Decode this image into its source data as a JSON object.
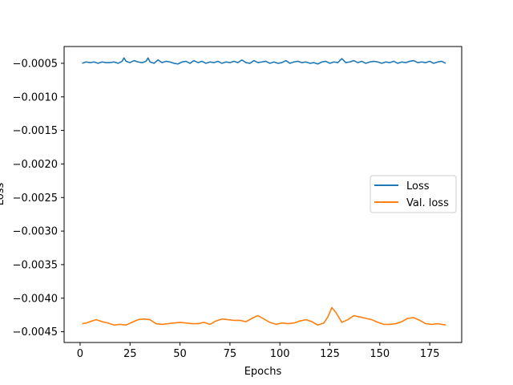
{
  "chart_data": {
    "type": "line",
    "title": "",
    "xlabel": "Epochs",
    "ylabel": "Loss",
    "xlim": [
      -8,
      191
    ],
    "ylim": [
      -0.00466,
      -0.00025
    ],
    "x_ticks": [
      0,
      25,
      50,
      75,
      100,
      125,
      150,
      175
    ],
    "x_tick_labels": [
      "0",
      "25",
      "50",
      "75",
      "100",
      "125",
      "150",
      "175"
    ],
    "y_ticks": [
      -0.0005,
      -0.001,
      -0.0015,
      -0.002,
      -0.0025,
      -0.003,
      -0.0035,
      -0.004,
      -0.0045
    ],
    "y_tick_labels": [
      "−0.0005",
      "−0.0010",
      "−0.0015",
      "−0.0020",
      "−0.0025",
      "−0.0030",
      "−0.0035",
      "−0.0040",
      "−0.0045"
    ],
    "grid": false,
    "legend_position": "center-right",
    "series": [
      {
        "name": "Loss",
        "color": "#1f77b4",
        "x": [
          1,
          3,
          5,
          7,
          9,
          11,
          13,
          15,
          17,
          19,
          21,
          22,
          23,
          25,
          27,
          29,
          31,
          33,
          34,
          35,
          37,
          39,
          41,
          43,
          45,
          47,
          49,
          51,
          53,
          55,
          57,
          59,
          61,
          63,
          65,
          67,
          69,
          71,
          73,
          75,
          77,
          79,
          81,
          83,
          85,
          87,
          89,
          91,
          93,
          95,
          97,
          99,
          101,
          103,
          105,
          107,
          109,
          111,
          113,
          115,
          117,
          119,
          121,
          123,
          125,
          127,
          129,
          131,
          133,
          135,
          137,
          139,
          141,
          143,
          145,
          147,
          149,
          151,
          153,
          155,
          157,
          159,
          161,
          163,
          165,
          167,
          169,
          171,
          173,
          175,
          177,
          179,
          181,
          183
        ],
        "y": [
          -0.0005,
          -0.00048,
          -0.00049,
          -0.00048,
          -0.0005,
          -0.00048,
          -0.00049,
          -0.00049,
          -0.00048,
          -0.0005,
          -0.00047,
          -0.00042,
          -0.00047,
          -0.00049,
          -0.00046,
          -0.00048,
          -0.00049,
          -0.00047,
          -0.00042,
          -0.00048,
          -0.0005,
          -0.00045,
          -0.00049,
          -0.00047,
          -0.00048,
          -0.0005,
          -0.00051,
          -0.00048,
          -0.00047,
          -0.0005,
          -0.00046,
          -0.00049,
          -0.00047,
          -0.0005,
          -0.00048,
          -0.00049,
          -0.00047,
          -0.0005,
          -0.00048,
          -0.00049,
          -0.00047,
          -0.00049,
          -0.00045,
          -0.00049,
          -0.0005,
          -0.00046,
          -0.00049,
          -0.00048,
          -0.00047,
          -0.0005,
          -0.00048,
          -0.0005,
          -0.00049,
          -0.00046,
          -0.0005,
          -0.00048,
          -0.00047,
          -0.00049,
          -0.00048,
          -0.0005,
          -0.00049,
          -0.00051,
          -0.00048,
          -0.00047,
          -0.0005,
          -0.00048,
          -0.00049,
          -0.00043,
          -0.00049,
          -0.00048,
          -0.00046,
          -0.00049,
          -0.00047,
          -0.0005,
          -0.00048,
          -0.00047,
          -0.00048,
          -0.0005,
          -0.00048,
          -0.00049,
          -0.00047,
          -0.0005,
          -0.00048,
          -0.00049,
          -0.00047,
          -0.00046,
          -0.00049,
          -0.00048,
          -0.00049,
          -0.00047,
          -0.0005,
          -0.00048,
          -0.00047,
          -0.0005
        ]
      },
      {
        "name": "Val. loss",
        "color": "#ff7f0e",
        "x": [
          1,
          3,
          5,
          8,
          11,
          14,
          17,
          20,
          23,
          26,
          29,
          32,
          35,
          38,
          41,
          44,
          47,
          50,
          53,
          56,
          59,
          62,
          65,
          68,
          71,
          74,
          77,
          80,
          83,
          86,
          89,
          92,
          95,
          98,
          101,
          104,
          107,
          110,
          113,
          116,
          119,
          122,
          124,
          126,
          128,
          131,
          134,
          137,
          140,
          143,
          146,
          149,
          152,
          155,
          158,
          161,
          164,
          167,
          170,
          173,
          176,
          179,
          183
        ],
        "y": [
          -0.00438,
          -0.00437,
          -0.00435,
          -0.00432,
          -0.00435,
          -0.00437,
          -0.0044,
          -0.00439,
          -0.0044,
          -0.00436,
          -0.00432,
          -0.00431,
          -0.00432,
          -0.00438,
          -0.00439,
          -0.00438,
          -0.00437,
          -0.00436,
          -0.00437,
          -0.00438,
          -0.00438,
          -0.00436,
          -0.00439,
          -0.00434,
          -0.00431,
          -0.00432,
          -0.00433,
          -0.00433,
          -0.00435,
          -0.0043,
          -0.00426,
          -0.00431,
          -0.00436,
          -0.00439,
          -0.00437,
          -0.00438,
          -0.00437,
          -0.00434,
          -0.00432,
          -0.00435,
          -0.0044,
          -0.00437,
          -0.00428,
          -0.00414,
          -0.00421,
          -0.00436,
          -0.00432,
          -0.00426,
          -0.00428,
          -0.0043,
          -0.00432,
          -0.00436,
          -0.00439,
          -0.00439,
          -0.00438,
          -0.00435,
          -0.0043,
          -0.00429,
          -0.00433,
          -0.00438,
          -0.00439,
          -0.00438,
          -0.0044
        ]
      }
    ]
  }
}
